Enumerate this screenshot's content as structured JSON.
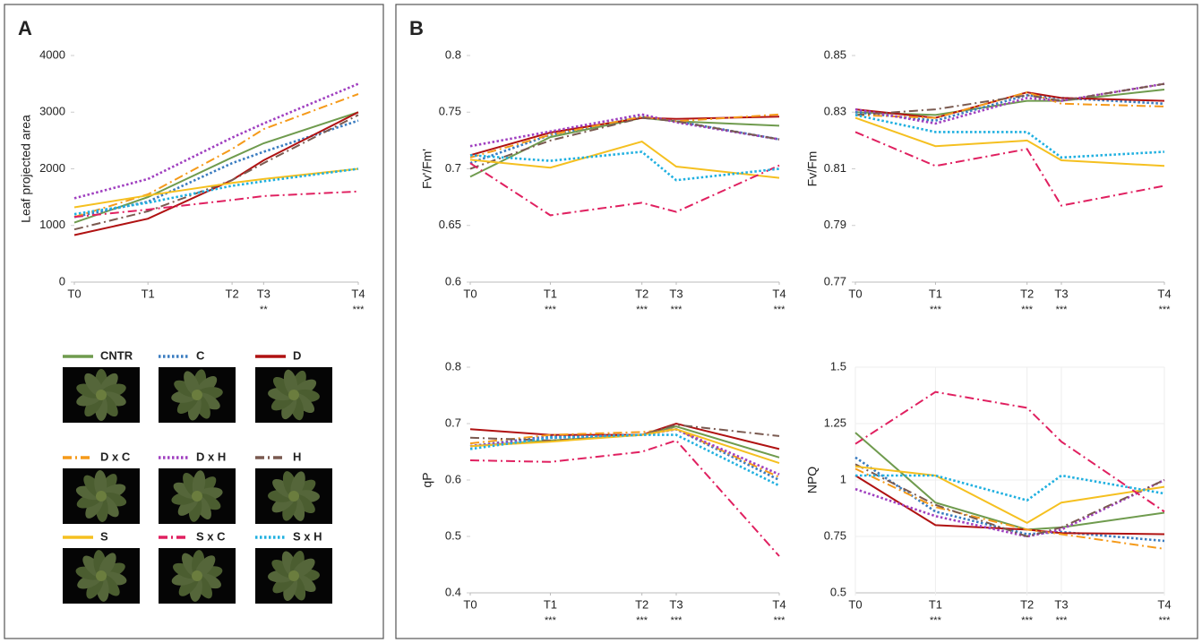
{
  "panel_labels": [
    "A",
    "B"
  ],
  "chart_data": [
    {
      "type": "line",
      "y_label": "Leaf projected area",
      "x": [
        0,
        7,
        15,
        18,
        27
      ],
      "xlim": [
        0,
        27
      ],
      "xticks": [
        {
          "value": 0,
          "label": "T0"
        },
        {
          "value": 7,
          "label": "T1"
        },
        {
          "value": 15,
          "label": "T2"
        },
        {
          "value": 18,
          "label": "T3"
        },
        {
          "value": 27,
          "label": "T4"
        }
      ],
      "significance": [
        {
          "x": 18,
          "label": "**"
        },
        {
          "x": 27,
          "label": "***"
        }
      ],
      "ylim": [
        0,
        4000
      ],
      "yticks": [
        0,
        1000,
        2000,
        3000,
        4000
      ],
      "grid": false,
      "series": [
        {
          "name": "CNTR",
          "color": "#6f9b4e",
          "line_style": "solid",
          "values": [
            1050,
            1500,
            2200,
            2450,
            3000
          ]
        },
        {
          "name": "C",
          "color": "#3a7cc0",
          "line_style": "dotted",
          "values": [
            1150,
            1420,
            2100,
            2300,
            2850
          ]
        },
        {
          "name": "D",
          "color": "#b01212",
          "line_style": "solid",
          "values": [
            830,
            1120,
            1800,
            2150,
            3000
          ]
        },
        {
          "name": "D x C",
          "color": "#f59a1a",
          "line_style": "dashdot",
          "values": [
            1150,
            1550,
            2350,
            2700,
            3320
          ]
        },
        {
          "name": "D x H",
          "color": "#a040c0",
          "line_style": "dotted",
          "values": [
            1480,
            1820,
            2550,
            2800,
            3500
          ]
        },
        {
          "name": "H",
          "color": "#7a5a50",
          "line_style": "dashdot",
          "values": [
            930,
            1250,
            1800,
            2100,
            2950
          ]
        },
        {
          "name": "S",
          "color": "#f5c020",
          "line_style": "solid",
          "values": [
            1320,
            1530,
            1750,
            1820,
            2000
          ]
        },
        {
          "name": "S x C",
          "color": "#e02060",
          "line_style": "dashdot",
          "values": [
            1150,
            1280,
            1450,
            1520,
            1600
          ]
        },
        {
          "name": "S x H",
          "color": "#20b0e0",
          "line_style": "dotted",
          "values": [
            1200,
            1400,
            1700,
            1780,
            2000
          ]
        }
      ]
    },
    {
      "type": "line",
      "y_label": "Fv'/Fm'",
      "x": [
        0,
        7,
        15,
        18,
        27
      ],
      "xlim": [
        0,
        27
      ],
      "xticks": [
        {
          "value": 0,
          "label": "T0"
        },
        {
          "value": 7,
          "label": "T1"
        },
        {
          "value": 15,
          "label": "T2"
        },
        {
          "value": 18,
          "label": "T3"
        },
        {
          "value": 27,
          "label": "T4"
        }
      ],
      "significance": [
        {
          "x": 7,
          "label": "***"
        },
        {
          "x": 15,
          "label": "***"
        },
        {
          "x": 18,
          "label": "***"
        },
        {
          "x": 27,
          "label": "***"
        }
      ],
      "ylim": [
        0.6,
        0.8
      ],
      "yticks": [
        0.6,
        0.65,
        0.7,
        0.75,
        0.8
      ],
      "grid": false,
      "series": [
        {
          "name": "CNTR",
          "color": "#6f9b4e",
          "line_style": "solid",
          "values": [
            0.693,
            0.728,
            0.745,
            0.742,
            0.738
          ]
        },
        {
          "name": "C",
          "color": "#3a7cc0",
          "line_style": "dotted",
          "values": [
            0.705,
            0.73,
            0.746,
            0.742,
            0.726
          ]
        },
        {
          "name": "D",
          "color": "#b01212",
          "line_style": "solid",
          "values": [
            0.712,
            0.732,
            0.745,
            0.744,
            0.746
          ]
        },
        {
          "name": "D x C",
          "color": "#f59a1a",
          "line_style": "dashdot",
          "values": [
            0.71,
            0.73,
            0.746,
            0.742,
            0.748
          ]
        },
        {
          "name": "D x H",
          "color": "#a040c0",
          "line_style": "dotted",
          "values": [
            0.72,
            0.733,
            0.748,
            0.741,
            0.726
          ]
        },
        {
          "name": "H",
          "color": "#7a5a50",
          "line_style": "dashdot",
          "values": [
            0.7,
            0.725,
            0.745,
            0.742,
            0.726
          ]
        },
        {
          "name": "S",
          "color": "#f5c020",
          "line_style": "solid",
          "values": [
            0.708,
            0.701,
            0.724,
            0.702,
            0.692
          ]
        },
        {
          "name": "S x C",
          "color": "#e02060",
          "line_style": "dashdot",
          "values": [
            0.705,
            0.659,
            0.67,
            0.662,
            0.703
          ]
        },
        {
          "name": "S x H",
          "color": "#20b0e0",
          "line_style": "dotted",
          "values": [
            0.712,
            0.707,
            0.715,
            0.69,
            0.7
          ]
        }
      ]
    },
    {
      "type": "line",
      "y_label": "Fv/Fm",
      "x": [
        0,
        7,
        15,
        18,
        27
      ],
      "xlim": [
        0,
        27
      ],
      "xticks": [
        {
          "value": 0,
          "label": "T0"
        },
        {
          "value": 7,
          "label": "T1"
        },
        {
          "value": 15,
          "label": "T2"
        },
        {
          "value": 18,
          "label": "T3"
        },
        {
          "value": 27,
          "label": "T4"
        }
      ],
      "significance": [
        {
          "x": 7,
          "label": "***"
        },
        {
          "x": 15,
          "label": "***"
        },
        {
          "x": 18,
          "label": "***"
        },
        {
          "x": 27,
          "label": "***"
        }
      ],
      "ylim": [
        0.77,
        0.85
      ],
      "yticks": [
        0.77,
        0.79,
        0.81,
        0.83,
        0.85
      ],
      "grid": false,
      "series": [
        {
          "name": "CNTR",
          "color": "#6f9b4e",
          "line_style": "solid",
          "values": [
            0.83,
            0.829,
            0.834,
            0.834,
            0.838
          ]
        },
        {
          "name": "C",
          "color": "#3a7cc0",
          "line_style": "dotted",
          "values": [
            0.83,
            0.827,
            0.836,
            0.835,
            0.833
          ]
        },
        {
          "name": "D",
          "color": "#b01212",
          "line_style": "solid",
          "values": [
            0.831,
            0.828,
            0.837,
            0.835,
            0.834
          ]
        },
        {
          "name": "D x C",
          "color": "#f59a1a",
          "line_style": "dashdot",
          "values": [
            0.829,
            0.828,
            0.837,
            0.833,
            0.832
          ]
        },
        {
          "name": "D x H",
          "color": "#a040c0",
          "line_style": "dotted",
          "values": [
            0.831,
            0.826,
            0.835,
            0.834,
            0.84
          ]
        },
        {
          "name": "H",
          "color": "#7a5a50",
          "line_style": "dashdot",
          "values": [
            0.829,
            0.831,
            0.836,
            0.834,
            0.84
          ]
        },
        {
          "name": "S",
          "color": "#f5c020",
          "line_style": "solid",
          "values": [
            0.828,
            0.818,
            0.82,
            0.813,
            0.811
          ]
        },
        {
          "name": "S x C",
          "color": "#e02060",
          "line_style": "dashdot",
          "values": [
            0.823,
            0.811,
            0.817,
            0.797,
            0.804
          ]
        },
        {
          "name": "S x H",
          "color": "#20b0e0",
          "line_style": "dotted",
          "values": [
            0.829,
            0.823,
            0.823,
            0.814,
            0.816
          ]
        }
      ]
    },
    {
      "type": "line",
      "y_label": "qP",
      "x": [
        0,
        7,
        15,
        18,
        27
      ],
      "xlim": [
        0,
        27
      ],
      "xticks": [
        {
          "value": 0,
          "label": "T0"
        },
        {
          "value": 7,
          "label": "T1"
        },
        {
          "value": 15,
          "label": "T2"
        },
        {
          "value": 18,
          "label": "T3"
        },
        {
          "value": 27,
          "label": "T4"
        }
      ],
      "significance": [
        {
          "x": 7,
          "label": "***"
        },
        {
          "x": 15,
          "label": "***"
        },
        {
          "x": 18,
          "label": "***"
        },
        {
          "x": 27,
          "label": "***"
        }
      ],
      "ylim": [
        0.4,
        0.8
      ],
      "yticks": [
        0.4,
        0.5,
        0.6,
        0.7,
        0.8
      ],
      "grid": false,
      "series": [
        {
          "name": "CNTR",
          "color": "#6f9b4e",
          "line_style": "solid",
          "values": [
            0.66,
            0.67,
            0.68,
            0.695,
            0.64
          ]
        },
        {
          "name": "C",
          "color": "#3a7cc0",
          "line_style": "dotted",
          "values": [
            0.66,
            0.678,
            0.68,
            0.69,
            0.6
          ]
        },
        {
          "name": "D",
          "color": "#b01212",
          "line_style": "solid",
          "values": [
            0.69,
            0.68,
            0.68,
            0.7,
            0.655
          ]
        },
        {
          "name": "D x C",
          "color": "#f59a1a",
          "line_style": "dashdot",
          "values": [
            0.665,
            0.68,
            0.685,
            0.69,
            0.605
          ]
        },
        {
          "name": "D x H",
          "color": "#a040c0",
          "line_style": "dotted",
          "values": [
            0.66,
            0.675,
            0.68,
            0.69,
            0.61
          ]
        },
        {
          "name": "H",
          "color": "#7a5a50",
          "line_style": "dashdot",
          "values": [
            0.675,
            0.67,
            0.68,
            0.698,
            0.678
          ]
        },
        {
          "name": "S",
          "color": "#f5c020",
          "line_style": "solid",
          "values": [
            0.66,
            0.668,
            0.68,
            0.69,
            0.63
          ]
        },
        {
          "name": "S x C",
          "color": "#e02060",
          "line_style": "dashdot",
          "values": [
            0.635,
            0.632,
            0.65,
            0.67,
            0.465
          ]
        },
        {
          "name": "S x H",
          "color": "#20b0e0",
          "line_style": "dotted",
          "values": [
            0.655,
            0.675,
            0.68,
            0.68,
            0.59
          ]
        }
      ]
    },
    {
      "type": "line",
      "y_label": "NPQ",
      "x": [
        0,
        7,
        15,
        18,
        27
      ],
      "xlim": [
        0,
        27
      ],
      "xticks": [
        {
          "value": 0,
          "label": "T0"
        },
        {
          "value": 7,
          "label": "T1"
        },
        {
          "value": 15,
          "label": "T2"
        },
        {
          "value": 18,
          "label": "T3"
        },
        {
          "value": 27,
          "label": "T4"
        }
      ],
      "significance": [
        {
          "x": 7,
          "label": "***"
        },
        {
          "x": 15,
          "label": "***"
        },
        {
          "x": 18,
          "label": "***"
        },
        {
          "x": 27,
          "label": "***"
        }
      ],
      "ylim": [
        0.5,
        1.5
      ],
      "yticks": [
        0.5,
        0.75,
        1,
        1.25,
        1.5
      ],
      "grid": true,
      "series": [
        {
          "name": "CNTR",
          "color": "#6f9b4e",
          "line_style": "solid",
          "values": [
            1.21,
            0.9,
            0.78,
            0.79,
            0.855
          ]
        },
        {
          "name": "C",
          "color": "#3a7cc0",
          "line_style": "dotted",
          "values": [
            1.1,
            0.86,
            0.76,
            0.77,
            0.73
          ]
        },
        {
          "name": "D",
          "color": "#b01212",
          "line_style": "solid",
          "values": [
            1.02,
            0.8,
            0.78,
            0.765,
            0.76
          ]
        },
        {
          "name": "D x C",
          "color": "#f59a1a",
          "line_style": "dashdot",
          "values": [
            1.05,
            0.88,
            0.78,
            0.76,
            0.695
          ]
        },
        {
          "name": "D x H",
          "color": "#a040c0",
          "line_style": "dotted",
          "values": [
            0.96,
            0.84,
            0.75,
            0.78,
            1.0
          ]
        },
        {
          "name": "H",
          "color": "#7a5a50",
          "line_style": "dashdot",
          "values": [
            1.07,
            0.89,
            0.75,
            0.79,
            1.0
          ]
        },
        {
          "name": "S",
          "color": "#f5c020",
          "line_style": "solid",
          "values": [
            1.06,
            1.02,
            0.81,
            0.9,
            0.97
          ]
        },
        {
          "name": "S x C",
          "color": "#e02060",
          "line_style": "dashdot",
          "values": [
            1.16,
            1.39,
            1.32,
            1.17,
            0.86
          ]
        },
        {
          "name": "S x H",
          "color": "#20b0e0",
          "line_style": "dotted",
          "values": [
            1.02,
            1.02,
            0.91,
            1.02,
            0.94
          ]
        }
      ]
    }
  ]
}
